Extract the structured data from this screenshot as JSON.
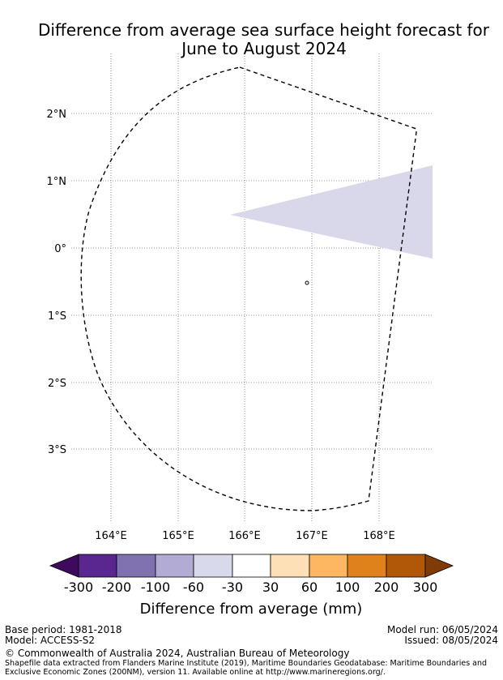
{
  "title": {
    "line1": "Difference from average sea surface height forecast for",
    "line2": "June to August 2024"
  },
  "map": {
    "lat_labels": [
      "2°N",
      "1°N",
      "0°",
      "1°S",
      "2°S",
      "3°S"
    ],
    "lon_labels": [
      "164°E",
      "165°E",
      "166°E",
      "167°E",
      "168°E"
    ],
    "gridlines": true,
    "shaded_region_color": "#d8d8ea",
    "boundary_style": "dashed"
  },
  "colorbar": {
    "ticks": [
      "-300",
      "-200",
      "-100",
      "-60",
      "-30",
      "30",
      "60",
      "100",
      "200",
      "300"
    ],
    "colors": [
      "#3f0a5c",
      "#5a2690",
      "#8072b1",
      "#b2abd4",
      "#d8d9eb",
      "#ffffff",
      "#fee0b6",
      "#fdb762",
      "#e0821b",
      "#b15808",
      "#7f3c07"
    ],
    "label": "Difference from average (mm)"
  },
  "footer": {
    "base_period": "Base period: 1981-2018",
    "model": "Model: ACCESS-S2",
    "model_run": "Model run: 06/05/2024",
    "issued": "Issued: 08/05/2024",
    "copyright": "© Commonwealth of Australia 2024, Australian Bureau of Meteorology",
    "shapefile_line1": "Shapefile data extracted from Flanders Marine Institute (2019), Maritime Boundaries Geodatabase: Maritime Boundaries and",
    "shapefile_line2": "Exclusive Economic Zones (200NM), version 11. Available online at http://www.marineregions.org/."
  }
}
